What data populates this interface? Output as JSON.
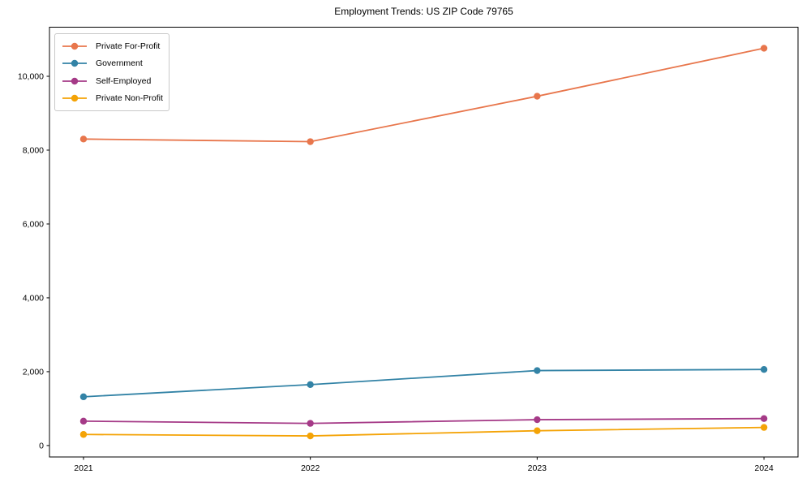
{
  "chart_data": {
    "type": "line",
    "title": "Employment Trends: US ZIP Code 79765",
    "xlabel": "",
    "ylabel": "",
    "x": [
      2021,
      2022,
      2023,
      2024
    ],
    "x_tick_labels": [
      "2021",
      "2022",
      "2023",
      "2024"
    ],
    "y_tick_values": [
      0,
      2000,
      4000,
      6000,
      8000,
      10000
    ],
    "y_tick_labels": [
      "0",
      "2,000",
      "4,000",
      "6,000",
      "8,000",
      "10,000"
    ],
    "xlim": [
      2020.85,
      2024.15
    ],
    "ylim": [
      -310,
      11330
    ],
    "grid": false,
    "legend_position": "upper-left",
    "series": [
      {
        "name": "Private For-Profit",
        "color": "#e8764c",
        "values": [
          8300,
          8230,
          9460,
          10760
        ]
      },
      {
        "name": "Government",
        "color": "#3383a6",
        "values": [
          1320,
          1650,
          2030,
          2060
        ]
      },
      {
        "name": "Self-Employed",
        "color": "#a53a87",
        "values": [
          660,
          600,
          700,
          730
        ]
      },
      {
        "name": "Private Non-Profit",
        "color": "#f4a306",
        "values": [
          300,
          260,
          400,
          490
        ]
      }
    ]
  }
}
